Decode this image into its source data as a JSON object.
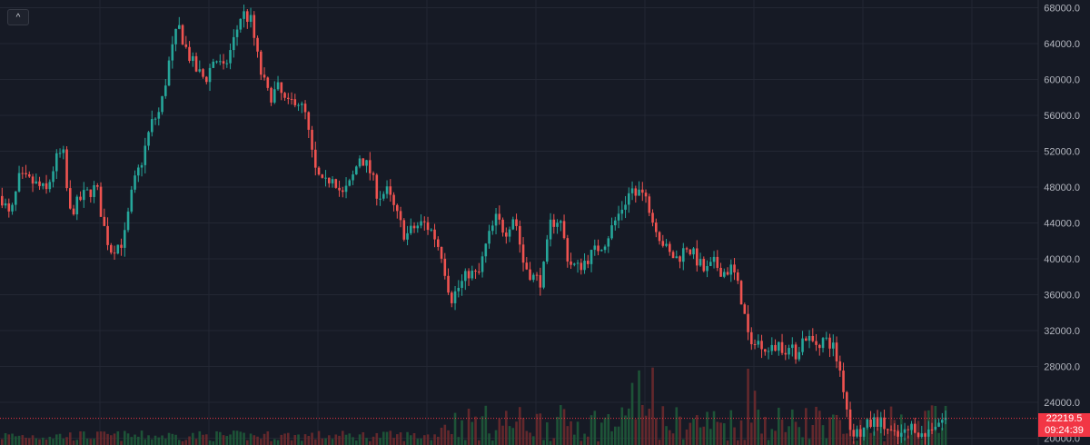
{
  "header": {
    "collapse_icon_glyph": "^"
  },
  "chart_data": {
    "type": "candlestick",
    "y_axis": {
      "position": "right",
      "range": [
        19500,
        69000
      ],
      "ticks": [
        20000,
        24000,
        28000,
        32000,
        36000,
        40000,
        44000,
        48000,
        52000,
        56000,
        60000,
        64000,
        68000
      ],
      "tick_labels": [
        "20000.0",
        "24000.0",
        "28000.0",
        "32000.0",
        "36000.0",
        "40000.0",
        "44000.0",
        "48000.0",
        "52000.0",
        "56000.0",
        "60000.0",
        "64000.0",
        "68000.0"
      ]
    },
    "grid": true,
    "last_price": 22219.5,
    "last_price_label": "22219.5",
    "countdown_label": "09:24:39",
    "close_path": [
      [
        0,
        47000
      ],
      [
        10,
        44500
      ],
      [
        20,
        49000
      ],
      [
        35,
        48500
      ],
      [
        50,
        47500
      ],
      [
        60,
        51000
      ],
      [
        68,
        52000
      ],
      [
        75,
        45000
      ],
      [
        90,
        47000
      ],
      [
        105,
        48000
      ],
      [
        112,
        44000
      ],
      [
        120,
        41000
      ],
      [
        135,
        42000
      ],
      [
        145,
        48000
      ],
      [
        155,
        51000
      ],
      [
        165,
        55000
      ],
      [
        175,
        56500
      ],
      [
        185,
        62000
      ],
      [
        195,
        66000
      ],
      [
        205,
        63000
      ],
      [
        215,
        61000
      ],
      [
        225,
        60000
      ],
      [
        235,
        62500
      ],
      [
        245,
        61000
      ],
      [
        255,
        64000
      ],
      [
        265,
        67500
      ],
      [
        275,
        66500
      ],
      [
        285,
        61000
      ],
      [
        295,
        58000
      ],
      [
        305,
        59000
      ],
      [
        315,
        57000
      ],
      [
        325,
        58000
      ],
      [
        335,
        56000
      ],
      [
        345,
        50000
      ],
      [
        355,
        48000
      ],
      [
        365,
        49500
      ],
      [
        375,
        47000
      ],
      [
        385,
        48500
      ],
      [
        395,
        51500
      ],
      [
        405,
        50000
      ],
      [
        415,
        47000
      ],
      [
        425,
        47500
      ],
      [
        435,
        45000
      ],
      [
        445,
        42500
      ],
      [
        455,
        43500
      ],
      [
        465,
        44000
      ],
      [
        475,
        43000
      ],
      [
        485,
        40500
      ],
      [
        495,
        35500
      ],
      [
        505,
        37000
      ],
      [
        515,
        38500
      ],
      [
        525,
        38000
      ],
      [
        535,
        42000
      ],
      [
        545,
        44500
      ],
      [
        555,
        43000
      ],
      [
        565,
        45000
      ],
      [
        575,
        39500
      ],
      [
        585,
        38000
      ],
      [
        595,
        37500
      ],
      [
        605,
        44000
      ],
      [
        615,
        44500
      ],
      [
        625,
        39500
      ],
      [
        635,
        39000
      ],
      [
        645,
        40000
      ],
      [
        655,
        41000
      ],
      [
        665,
        42000
      ],
      [
        675,
        44000
      ],
      [
        685,
        46000
      ],
      [
        695,
        48000
      ],
      [
        705,
        47500
      ],
      [
        715,
        45500
      ],
      [
        725,
        42500
      ],
      [
        735,
        40500
      ],
      [
        745,
        40000
      ],
      [
        755,
        41500
      ],
      [
        765,
        40000
      ],
      [
        775,
        38500
      ],
      [
        785,
        39500
      ],
      [
        795,
        38500
      ],
      [
        805,
        39000
      ],
      [
        815,
        35500
      ],
      [
        825,
        30000
      ],
      [
        835,
        31000
      ],
      [
        845,
        29500
      ],
      [
        855,
        30500
      ],
      [
        865,
        30000
      ],
      [
        875,
        29500
      ],
      [
        885,
        31500
      ],
      [
        895,
        30500
      ],
      [
        905,
        31000
      ],
      [
        915,
        30500
      ],
      [
        925,
        27000
      ],
      [
        935,
        21000
      ],
      [
        945,
        20500
      ],
      [
        955,
        21500
      ],
      [
        965,
        22000
      ],
      [
        975,
        21000
      ],
      [
        985,
        20000
      ],
      [
        995,
        20500
      ],
      [
        1005,
        21500
      ],
      [
        1015,
        20000
      ],
      [
        1025,
        21500
      ],
      [
        1035,
        22000
      ],
      [
        1040,
        22219.5
      ]
    ]
  },
  "colors": {
    "background": "#161a25",
    "grid": "#232733",
    "up": "#26a69a",
    "down": "#ef5350",
    "axis_text": "#b2b5be",
    "last_price": "#f23645",
    "volume_up": "#1e5a3a",
    "volume_down": "#6b2a2e"
  }
}
